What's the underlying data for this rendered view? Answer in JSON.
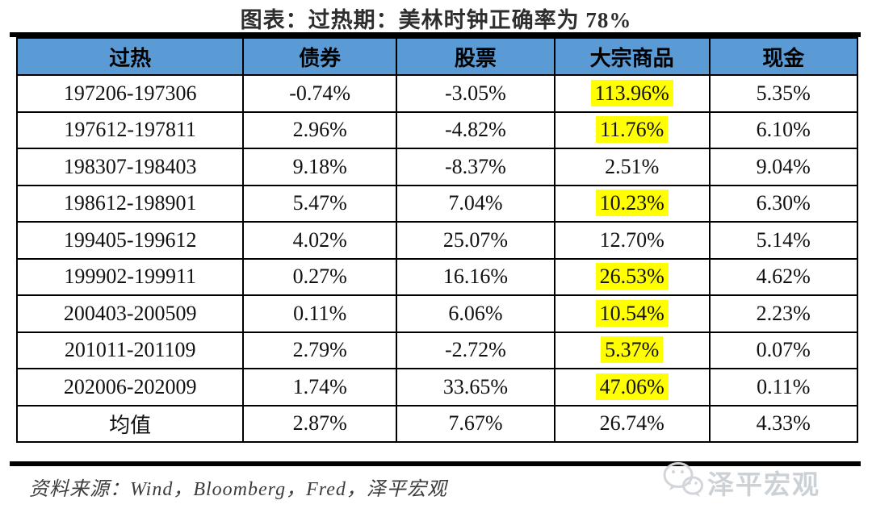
{
  "page": {
    "background": "#FFFFFF"
  },
  "title": "图表：过热期：美林时钟正确率为 78%",
  "source_note": "资料来源：Wind，Bloomberg，Fred，泽平宏观",
  "watermark": {
    "label": "泽平宏观",
    "icon": "wechat-icon"
  },
  "colors": {
    "header_bg": "#5B9BD5",
    "header_text": "#000000",
    "body_text": "#111111",
    "highlight_bg": "#FFFF00",
    "border": "#000000",
    "rule": "#000000",
    "watermark_text": "#CCD1D5"
  },
  "chart_data": {
    "type": "table",
    "title": "图表：过热期：美林时钟正确率为 78%",
    "columns": [
      "过热",
      "债券",
      "股票",
      "大宗商品",
      "现金"
    ],
    "rows": [
      {
        "cells": [
          "197206-197306",
          "-0.74%",
          "-3.05%",
          "113.96%",
          "5.35%"
        ],
        "highlight_col": 3
      },
      {
        "cells": [
          "197612-197811",
          "2.96%",
          "-4.82%",
          "11.76%",
          "6.10%"
        ],
        "highlight_col": 3
      },
      {
        "cells": [
          "198307-198403",
          "9.18%",
          "-8.37%",
          "2.51%",
          "9.04%"
        ],
        "highlight_col": null
      },
      {
        "cells": [
          "198612-198901",
          "5.47%",
          "7.04%",
          "10.23%",
          "6.30%"
        ],
        "highlight_col": 3
      },
      {
        "cells": [
          "199405-199612",
          "4.02%",
          "25.07%",
          "12.70%",
          "5.14%"
        ],
        "highlight_col": null
      },
      {
        "cells": [
          "199902-199911",
          "0.27%",
          "16.16%",
          "26.53%",
          "4.62%"
        ],
        "highlight_col": 3
      },
      {
        "cells": [
          "200403-200509",
          "0.11%",
          "6.06%",
          "10.54%",
          "2.23%"
        ],
        "highlight_col": 3
      },
      {
        "cells": [
          "201011-201109",
          "2.79%",
          "-2.72%",
          "5.37%",
          "0.07%"
        ],
        "highlight_col": 3
      },
      {
        "cells": [
          "202006-202009",
          "1.74%",
          "33.65%",
          "47.06%",
          "0.11%"
        ],
        "highlight_col": 3
      },
      {
        "cells": [
          "均值",
          "2.87%",
          "7.67%",
          "26.74%",
          "4.33%"
        ],
        "highlight_col": null
      }
    ]
  }
}
